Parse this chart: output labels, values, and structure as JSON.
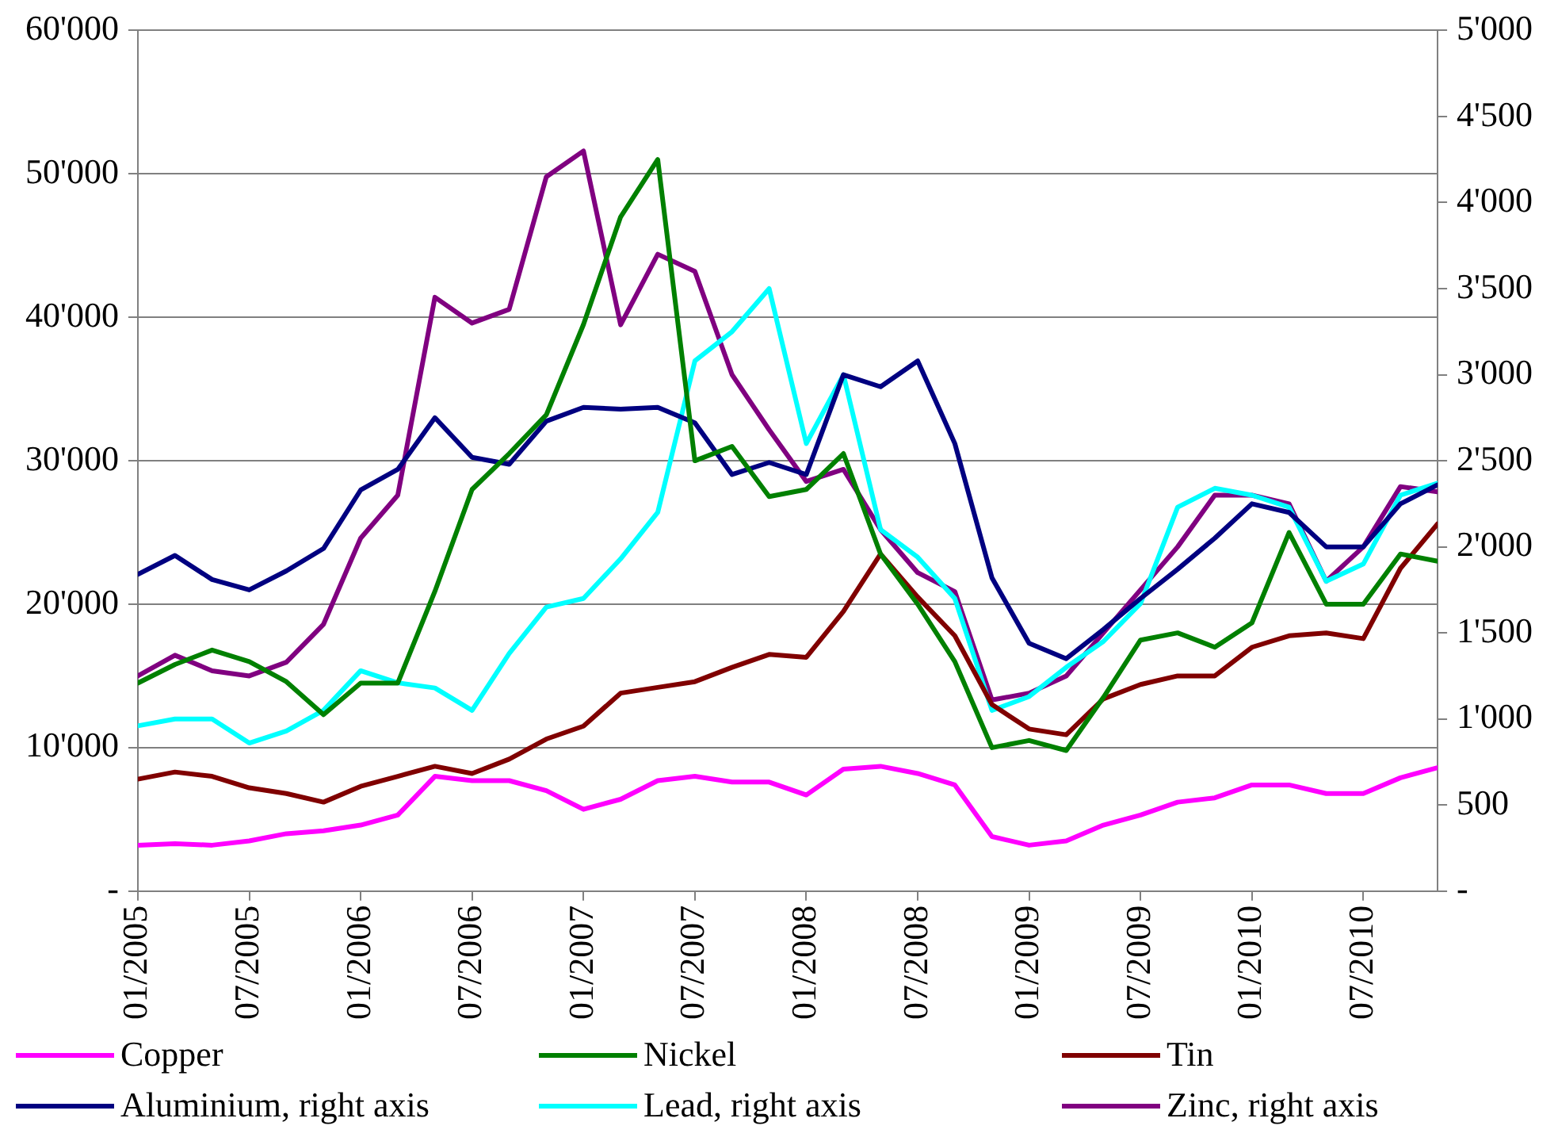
{
  "chart_data": {
    "type": "line",
    "x": [
      "2005-01",
      "2005-03",
      "2005-05",
      "2005-07",
      "2005-09",
      "2005-11",
      "2006-01",
      "2006-03",
      "2006-05",
      "2006-07",
      "2006-09",
      "2006-11",
      "2007-01",
      "2007-03",
      "2007-05",
      "2007-07",
      "2007-09",
      "2007-11",
      "2008-01",
      "2008-03",
      "2008-05",
      "2008-07",
      "2008-09",
      "2008-11",
      "2009-01",
      "2009-03",
      "2009-05",
      "2009-07",
      "2009-09",
      "2009-11",
      "2010-01",
      "2010-03",
      "2010-05",
      "2010-07",
      "2010-09",
      "2010-11"
    ],
    "series": [
      {
        "name": "Copper",
        "color": "#ff00ff",
        "values": [
          3200,
          3300,
          3200,
          3500,
          4000,
          4200,
          4600,
          5300,
          8000,
          7700,
          7700,
          7000,
          5700,
          6400,
          7700,
          8000,
          7600,
          7600,
          6700,
          8500,
          8700,
          8200,
          7400,
          3800,
          3200,
          3500,
          4600,
          5300,
          6200,
          6500,
          7400,
          7400,
          6800,
          6800,
          7900,
          8600
        ]
      },
      {
        "name": "Nickel",
        "color": "#008000",
        "values": [
          14500,
          15800,
          16800,
          16000,
          14600,
          12300,
          14500,
          14500,
          20900,
          28000,
          30500,
          33200,
          39500,
          47000,
          51000,
          30000,
          31000,
          27500,
          28000,
          30500,
          23500,
          20000,
          16000,
          10000,
          10500,
          9800,
          13500,
          17500,
          18000,
          17000,
          18700,
          25000,
          20000,
          20000,
          23500,
          23000
        ]
      },
      {
        "name": "Tin",
        "color": "#800000",
        "values": [
          7800,
          8300,
          8000,
          7200,
          6800,
          6200,
          7300,
          8000,
          8700,
          8200,
          9200,
          10600,
          11500,
          13800,
          14200,
          14600,
          15600,
          16500,
          16300,
          19500,
          23500,
          20500,
          17800,
          13000,
          11300,
          10900,
          13400,
          14400,
          15000,
          15000,
          17000,
          17800,
          18000,
          17600,
          22500,
          25600
        ]
      },
      {
        "name": "Aluminium, right axis",
        "color": "#000080",
        "axis": "y2",
        "values": [
          1840,
          1950,
          1810,
          1750,
          1860,
          1990,
          2330,
          2450,
          2750,
          2520,
          2480,
          2730,
          2810,
          2800,
          2810,
          2720,
          2420,
          2490,
          2420,
          3000,
          2930,
          3080,
          2600,
          1820,
          1440,
          1350,
          1520,
          1700,
          1870,
          2050,
          2250,
          2200,
          2000,
          2000,
          2250,
          2360
        ]
      },
      {
        "name": "Lead, right axis",
        "color": "#00ffff",
        "axis": "y2",
        "values": [
          960,
          1000,
          1000,
          860,
          930,
          1050,
          1280,
          1210,
          1180,
          1050,
          1380,
          1650,
          1700,
          1930,
          2200,
          3080,
          3250,
          3500,
          2600,
          3000,
          2100,
          1940,
          1700,
          1050,
          1130,
          1300,
          1450,
          1670,
          2230,
          2340,
          2300,
          2230,
          1800,
          1900,
          2300,
          2370
        ]
      },
      {
        "name": "Zinc, right axis",
        "color": "#800080",
        "axis": "y2",
        "values": [
          1250,
          1370,
          1280,
          1250,
          1330,
          1550,
          2050,
          2300,
          3450,
          3300,
          3380,
          4150,
          4300,
          3290,
          3700,
          3600,
          3000,
          2680,
          2380,
          2450,
          2100,
          1850,
          1740,
          1110,
          1150,
          1250,
          1500,
          1750,
          2000,
          2300,
          2300,
          2250,
          1800,
          2000,
          2350,
          2320
        ]
      }
    ],
    "xlim": [
      "2005-01",
      "2010-11"
    ],
    "xticks": [
      {
        "value": "2005-01",
        "label": "01/2005"
      },
      {
        "value": "2005-07",
        "label": "07/2005"
      },
      {
        "value": "2006-01",
        "label": "01/2006"
      },
      {
        "value": "2006-07",
        "label": "07/2006"
      },
      {
        "value": "2007-01",
        "label": "01/2007"
      },
      {
        "value": "2007-07",
        "label": "07/2007"
      },
      {
        "value": "2008-01",
        "label": "01/2008"
      },
      {
        "value": "2008-07",
        "label": "07/2008"
      },
      {
        "value": "2009-01",
        "label": "01/2009"
      },
      {
        "value": "2009-07",
        "label": "07/2009"
      },
      {
        "value": "2010-01",
        "label": "01/2010"
      },
      {
        "value": "2010-07",
        "label": "07/2010"
      }
    ],
    "ylim": [
      0,
      60000
    ],
    "yticks": [
      {
        "value": 0,
        "label": "-"
      },
      {
        "value": 10000,
        "label": "10'000"
      },
      {
        "value": 20000,
        "label": "20'000"
      },
      {
        "value": 30000,
        "label": "30'000"
      },
      {
        "value": 40000,
        "label": "40'000"
      },
      {
        "value": 50000,
        "label": "50'000"
      },
      {
        "value": 60000,
        "label": "60'000"
      }
    ],
    "y2lim": [
      0,
      5000
    ],
    "y2ticks": [
      {
        "value": 0,
        "label": "-"
      },
      {
        "value": 500,
        "label": "500"
      },
      {
        "value": 1000,
        "label": "1'000"
      },
      {
        "value": 1500,
        "label": "1'500"
      },
      {
        "value": 2000,
        "label": "2'000"
      },
      {
        "value": 2500,
        "label": "2'500"
      },
      {
        "value": 3000,
        "label": "3'000"
      },
      {
        "value": 3500,
        "label": "3'500"
      },
      {
        "value": 4000,
        "label": "4'000"
      },
      {
        "value": 4500,
        "label": "4'500"
      },
      {
        "value": 5000,
        "label": "5'000"
      }
    ],
    "grid": "y",
    "legend": "bottom",
    "marker": "none",
    "line_style": "solid"
  }
}
